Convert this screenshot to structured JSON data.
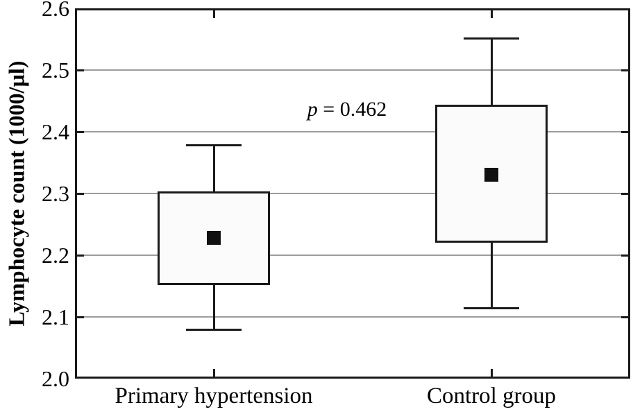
{
  "colors": {
    "background": "#ffffff",
    "frame": "#1a1a1a",
    "gridline": "#9c9c9c",
    "box_fill": "#fbfbfb",
    "marker": "#111111",
    "text": "#000000"
  },
  "chart_data": {
    "type": "box",
    "title": "",
    "xlabel": "",
    "ylabel": "Lymphocyte count (1000/µl)",
    "ylim": [
      2.0,
      2.6
    ],
    "yticks": [
      2.0,
      2.1,
      2.2,
      2.3,
      2.4,
      2.5,
      2.6
    ],
    "ytick_labels": [
      "2.0",
      "2.1",
      "2.2",
      "2.3",
      "2.4",
      "2.5",
      "2.6"
    ],
    "grid": "horizontal-inner-only",
    "legend": "none",
    "categories": [
      "Primary hypertension",
      "Control group"
    ],
    "series": [
      {
        "name": "Primary hypertension",
        "whisker_low": 2.079,
        "box_low": 2.152,
        "mean": 2.228,
        "box_high": 2.303,
        "whisker_high": 2.378
      },
      {
        "name": "Control group",
        "whisker_low": 2.114,
        "box_low": 2.22,
        "mean": 2.33,
        "box_high": 2.444,
        "whisker_high": 2.551
      }
    ],
    "annotation": {
      "symbol": "p",
      "rest": " = 0.462",
      "x_frac": 0.49,
      "y_value": 2.436
    }
  }
}
